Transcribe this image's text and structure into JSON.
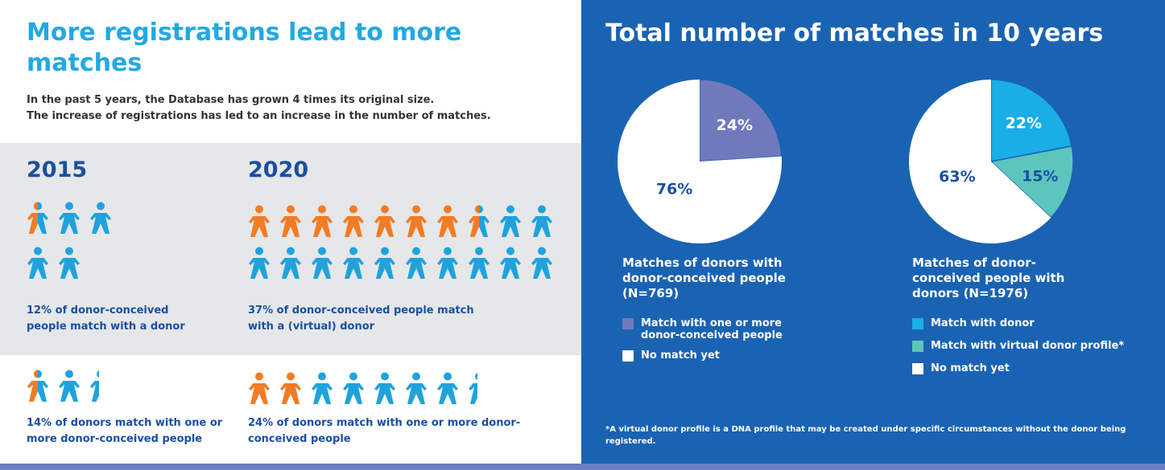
{
  "left": {
    "title": "More registrations lead to more matches",
    "intro_line1": "In the past 5 years, the Database has grown 4 times its original size.",
    "intro_line2": "The increase of registrations has led to an increase in the number of matches.",
    "year_2015": "2015",
    "year_2020": "2020",
    "people_2015": {
      "pct": "12%",
      "text": " of donor-conceived people match with a donor",
      "pct_bold": false
    },
    "people_2020": {
      "pct": "37%",
      "text": " of donor-conceived people match with a (virtual) donor",
      "pct_bold": true
    },
    "donors_2015": {
      "pct": "14%",
      "text": " of donors match with one or more donor-conceived people",
      "pct_bold": true
    },
    "donors_2020": {
      "pct": "24%",
      "text": " of donors match with one or more donor-conceived people",
      "pct_bold": true
    }
  },
  "icons": {
    "people_2015_row1": [
      "half",
      "blue",
      "blue"
    ],
    "people_2015_row2": [
      "blue",
      "blue"
    ],
    "people_2020_row1": [
      "orange",
      "orange",
      "orange",
      "orange",
      "orange",
      "orange",
      "orange",
      "half",
      "blue",
      "blue"
    ],
    "people_2020_row2": [
      "blue",
      "blue",
      "blue",
      "blue",
      "blue",
      "blue",
      "blue",
      "blue",
      "blue",
      "blue"
    ],
    "donors_2015": [
      "half",
      "blue",
      "cut"
    ],
    "donors_2020": [
      "orange",
      "orange",
      "blue",
      "blue",
      "blue",
      "blue",
      "blue",
      "cut"
    ]
  },
  "colors": {
    "orange": "#f37b23",
    "blue": "#1fa3dd",
    "navy_text": "#1a4fa0",
    "panel_blue": "#1a63b3",
    "purple": "#7179bd",
    "cyan": "#1aaee6",
    "teal": "#5cc6bd",
    "white": "#ffffff"
  },
  "right": {
    "title": "Total number of matches in 10 years",
    "footnote": "*A virtual donor profile is a DNA profile that may be created under specific circumstances without the donor being registered."
  },
  "chart_data": [
    {
      "type": "pie",
      "title": "Matches of donors with donor-conceived people (N=769)",
      "slices": [
        {
          "label": "Match with one or more donor-conceived people",
          "value": 24,
          "display": "24%",
          "color": "#7179bd",
          "text_color": "#ffffff"
        },
        {
          "label": "No match yet",
          "value": 76,
          "display": "76%",
          "color": "#ffffff",
          "text_color": "#1a4fa0"
        }
      ]
    },
    {
      "type": "pie",
      "title": "Matches of donor-conceived people with donors (N=1976)",
      "slices": [
        {
          "label": "Match with donor",
          "value": 22,
          "display": "22%",
          "color": "#1aaee6",
          "text_color": "#ffffff"
        },
        {
          "label": "Match with virtual donor profile*",
          "value": 15,
          "display": "15%",
          "color": "#5cc6bd",
          "text_color": "#1a4fa0"
        },
        {
          "label": "No match yet",
          "value": 63,
          "display": "63%",
          "color": "#ffffff",
          "text_color": "#1a4fa0"
        }
      ]
    }
  ]
}
